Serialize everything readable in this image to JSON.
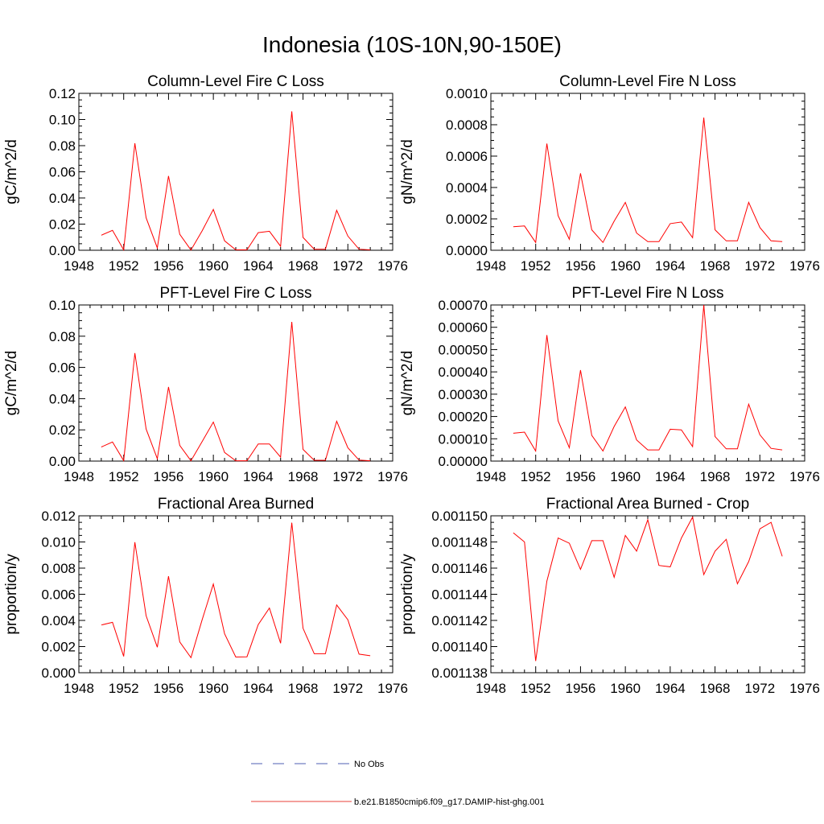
{
  "figure": {
    "title": "Indonesia (10S-10N,90-150E)"
  },
  "legend": [
    {
      "label": "No Obs",
      "color": "#4f5fb3",
      "dash": true
    },
    {
      "label": "b.e21.B1850cmip6.f09_g17.DAMIP-hist-ghg.001",
      "color": "#e8413a",
      "dash": false
    }
  ],
  "colors": {
    "series": "#ff0000",
    "obs": "#4f5fb3"
  },
  "chart_data": [
    {
      "type": "line",
      "title": "Column-Level Fire C Loss",
      "ylabel": "gC/m^2/d",
      "xlim": [
        1948,
        1976
      ],
      "ylim": [
        0,
        0.12
      ],
      "xticks": [
        1948,
        1952,
        1956,
        1960,
        1964,
        1968,
        1972,
        1976
      ],
      "xtick_labels": [
        "1948",
        "1952",
        "1956",
        "1960",
        "1964",
        "1968",
        "1972",
        "1976"
      ],
      "yticks": [
        0,
        0.02,
        0.04,
        0.06,
        0.08,
        0.1,
        0.12
      ],
      "ytick_labels": [
        "0.00",
        "0.02",
        "0.04",
        "0.06",
        "0.08",
        "0.10",
        "0.12"
      ],
      "series": [
        {
          "x": [
            1950,
            1951,
            1952,
            1953,
            1954,
            1955,
            1956,
            1957,
            1958,
            1959,
            1960,
            1961,
            1962,
            1963,
            1964,
            1965,
            1966,
            1967,
            1968,
            1969,
            1970,
            1971,
            1972,
            1973,
            1974
          ],
          "values": [
            0.0115,
            0.0152,
            0.0003,
            0.0818,
            0.0248,
            0.0018,
            0.0568,
            0.0122,
            0.0002,
            0.0148,
            0.0312,
            0.0072,
            0.0003,
            0.0003,
            0.0135,
            0.0145,
            0.003,
            0.1062,
            0.0098,
            0.0008,
            0.0008,
            0.0305,
            0.0108,
            0.0008,
            0.0003
          ]
        }
      ]
    },
    {
      "type": "line",
      "title": "Column-Level Fire N Loss",
      "ylabel": "gN/m^2/d",
      "xlim": [
        1948,
        1976
      ],
      "ylim": [
        0,
        0.001
      ],
      "xticks": [
        1948,
        1952,
        1956,
        1960,
        1964,
        1968,
        1972,
        1976
      ],
      "xtick_labels": [
        "1948",
        "1952",
        "1956",
        "1960",
        "1964",
        "1968",
        "1972",
        "1976"
      ],
      "yticks": [
        0,
        0.0002,
        0.0004,
        0.0006,
        0.0008,
        0.001
      ],
      "ytick_labels": [
        "0.0000",
        "0.0002",
        "0.0004",
        "0.0006",
        "0.0008",
        "0.0010"
      ],
      "series": [
        {
          "x": [
            1950,
            1951,
            1952,
            1953,
            1954,
            1955,
            1956,
            1957,
            1958,
            1959,
            1960,
            1961,
            1962,
            1963,
            1964,
            1965,
            1966,
            1967,
            1968,
            1969,
            1970,
            1971,
            1972,
            1973,
            1974
          ],
          "values": [
            0.00015,
            0.000155,
            5e-05,
            0.00068,
            0.00022,
            7e-05,
            0.00049,
            0.00013,
            5e-05,
            0.000185,
            0.000305,
            0.00011,
            5.5e-05,
            5.5e-05,
            0.00017,
            0.00018,
            8e-05,
            0.000845,
            0.00013,
            6e-05,
            6e-05,
            0.000305,
            0.000145,
            6e-05,
            5.5e-05
          ]
        }
      ]
    },
    {
      "type": "line",
      "title": "PFT-Level Fire C Loss",
      "ylabel": "gC/m^2/d",
      "xlim": [
        1948,
        1976
      ],
      "ylim": [
        0,
        0.1
      ],
      "xticks": [
        1948,
        1952,
        1956,
        1960,
        1964,
        1968,
        1972,
        1976
      ],
      "xtick_labels": [
        "1948",
        "1952",
        "1956",
        "1960",
        "1964",
        "1968",
        "1972",
        "1976"
      ],
      "yticks": [
        0,
        0.02,
        0.04,
        0.06,
        0.08,
        0.1
      ],
      "ytick_labels": [
        "0.00",
        "0.02",
        "0.04",
        "0.06",
        "0.08",
        "0.10"
      ],
      "series": [
        {
          "x": [
            1950,
            1951,
            1952,
            1953,
            1954,
            1955,
            1956,
            1957,
            1958,
            1959,
            1960,
            1961,
            1962,
            1963,
            1964,
            1965,
            1966,
            1967,
            1968,
            1969,
            1970,
            1971,
            1972,
            1973,
            1974
          ],
          "values": [
            0.009,
            0.0122,
            0.0003,
            0.0692,
            0.0205,
            0.0015,
            0.0475,
            0.01,
            0.0002,
            0.0125,
            0.025,
            0.0055,
            0.0002,
            0.0002,
            0.011,
            0.011,
            0.0025,
            0.0892,
            0.0075,
            0.0005,
            0.0005,
            0.0255,
            0.0085,
            0.0006,
            0.0002
          ]
        }
      ]
    },
    {
      "type": "line",
      "title": "PFT-Level Fire N Loss",
      "ylabel": "gN/m^2/d",
      "xlim": [
        1948,
        1976
      ],
      "ylim": [
        0,
        0.0007
      ],
      "xticks": [
        1948,
        1952,
        1956,
        1960,
        1964,
        1968,
        1972,
        1976
      ],
      "xtick_labels": [
        "1948",
        "1952",
        "1956",
        "1960",
        "1964",
        "1968",
        "1972",
        "1976"
      ],
      "yticks": [
        0,
        0.0001,
        0.0002,
        0.0003,
        0.0004,
        0.0005,
        0.0006,
        0.0007
      ],
      "ytick_labels": [
        "0.00000",
        "0.00010",
        "0.00020",
        "0.00030",
        "0.00040",
        "0.00050",
        "0.00060",
        "0.00070"
      ],
      "series": [
        {
          "x": [
            1950,
            1951,
            1952,
            1953,
            1954,
            1955,
            1956,
            1957,
            1958,
            1959,
            1960,
            1961,
            1962,
            1963,
            1964,
            1965,
            1966,
            1967,
            1968,
            1969,
            1970,
            1971,
            1972,
            1973,
            1974
          ],
          "values": [
            0.000125,
            0.00013,
            4.5e-05,
            0.000565,
            0.00018,
            6e-05,
            0.000408,
            0.000115,
            4.5e-05,
            0.000155,
            0.000243,
            9.5e-05,
            5e-05,
            5e-05,
            0.000143,
            0.00014,
            6.5e-05,
            0.0007,
            0.00011,
            5.5e-05,
            5.5e-05,
            0.000255,
            0.000118,
            5.7e-05,
            5e-05
          ]
        }
      ]
    },
    {
      "type": "line",
      "title": "Fractional Area Burned",
      "ylabel": "proportion/y",
      "xlim": [
        1948,
        1976
      ],
      "ylim": [
        0,
        0.012
      ],
      "xticks": [
        1948,
        1952,
        1956,
        1960,
        1964,
        1968,
        1972,
        1976
      ],
      "xtick_labels": [
        "1948",
        "1952",
        "1956",
        "1960",
        "1964",
        "1968",
        "1972",
        "1976"
      ],
      "yticks": [
        0,
        0.002,
        0.004,
        0.006,
        0.008,
        0.01,
        0.012
      ],
      "ytick_labels": [
        "0.000",
        "0.002",
        "0.004",
        "0.006",
        "0.008",
        "0.010",
        "0.012"
      ],
      "series": [
        {
          "x": [
            1950,
            1951,
            1952,
            1953,
            1954,
            1955,
            1956,
            1957,
            1958,
            1959,
            1960,
            1961,
            1962,
            1963,
            1964,
            1965,
            1966,
            1967,
            1968,
            1969,
            1970,
            1971,
            1972,
            1973,
            1974
          ],
          "values": [
            0.00365,
            0.00385,
            0.00125,
            0.00998,
            0.00435,
            0.00195,
            0.00738,
            0.00235,
            0.00115,
            0.00405,
            0.00678,
            0.00298,
            0.0012,
            0.00122,
            0.00368,
            0.00495,
            0.00225,
            0.01148,
            0.0034,
            0.00145,
            0.00145,
            0.00518,
            0.00405,
            0.00142,
            0.0013
          ]
        }
      ]
    },
    {
      "type": "line",
      "title": "Fractional Area Burned - Crop",
      "ylabel": "proportion/y",
      "xlim": [
        1948,
        1976
      ],
      "ylim": [
        0.001138,
        0.00115
      ],
      "xticks": [
        1948,
        1952,
        1956,
        1960,
        1964,
        1968,
        1972,
        1976
      ],
      "xtick_labels": [
        "1948",
        "1952",
        "1956",
        "1960",
        "1964",
        "1968",
        "1972",
        "1976"
      ],
      "yticks": [
        0.001138,
        0.00114,
        0.001142,
        0.001144,
        0.001146,
        0.001148,
        0.00115
      ],
      "ytick_labels": [
        "0.001138",
        "0.001140",
        "0.001142",
        "0.001144",
        "0.001146",
        "0.001148",
        "0.001150"
      ],
      "series": [
        {
          "x": [
            1950,
            1951,
            1952,
            1953,
            1954,
            1955,
            1956,
            1957,
            1958,
            1959,
            1960,
            1961,
            1962,
            1963,
            1964,
            1965,
            1966,
            1967,
            1968,
            1969,
            1970,
            1971,
            1972,
            1973,
            1974
          ],
          "values": [
            0.0011487,
            0.001148,
            0.0011389,
            0.001145,
            0.0011483,
            0.0011479,
            0.0011459,
            0.0011481,
            0.0011481,
            0.0011453,
            0.0011485,
            0.0011473,
            0.0011497,
            0.0011462,
            0.0011461,
            0.0011483,
            0.0011499,
            0.0011455,
            0.0011473,
            0.0011482,
            0.0011448,
            0.0011465,
            0.001149,
            0.0011495,
            0.0011469
          ]
        }
      ]
    }
  ]
}
